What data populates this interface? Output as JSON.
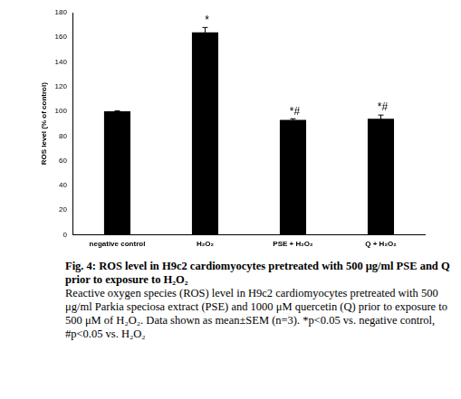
{
  "chart_data": {
    "type": "bar",
    "categories": [
      "negative control",
      "H₂O₂",
      "PSE + H₂O₂",
      "Q + H₂O₂"
    ],
    "values": [
      100,
      164,
      93,
      94
    ],
    "errors": [
      0.5,
      4,
      1,
      3
    ],
    "color": "#000000",
    "y_label": "ROS level (% of control)",
    "ylim": [
      0,
      180
    ],
    "yticks": [
      0,
      20,
      40,
      60,
      80,
      100,
      120,
      140,
      160,
      180
    ],
    "grid": false,
    "annotations": [
      null,
      "*",
      "*#",
      "*#"
    ],
    "caption": {
      "title": "Fig. 4: ROS level in H9c2 cardiomyocytes pretreated with 500 μg/ml PSE and Q prior to exposure to H₂O₂",
      "text": "Reactive oxygen species (ROS) level in H9c2 cardiomyocytes pretreated with 500 μg/ml Parkia speciosa extract (PSE) and 1000 μM quercetin (Q) prior to exposure to 500 μM of H₂O₂. Data shown as mean±SEM (n=3). *p<0.05 vs. negative control, #p<0.05 vs. H₂O₂"
    }
  }
}
